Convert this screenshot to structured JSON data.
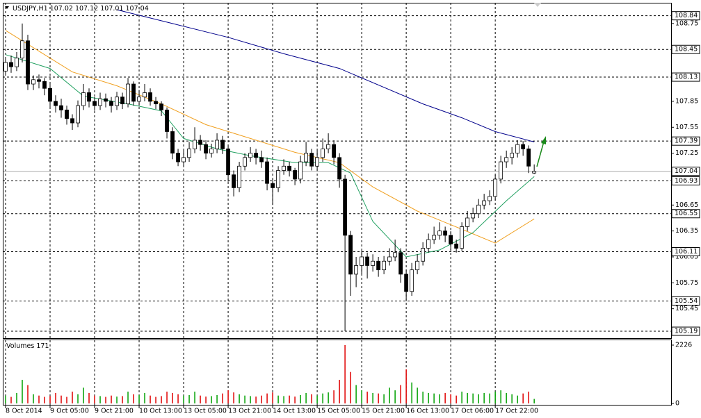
{
  "chart_data": {
    "type": "candlestick",
    "symbol": "USDJPY,H1",
    "volume_label": "Volumes",
    "up_color": "#ffffff",
    "down_color": "#000000",
    "wick_color": "#000000",
    "volume_up_color": "#00a000",
    "volume_down_color": "#e00000",
    "grid": true,
    "xlim": [
      -0.5,
      119.6
    ],
    "xticks": [
      {
        "value": 0,
        "label": "8 Oct 2014"
      },
      {
        "value": 8,
        "label": "9 Oct 05:00"
      },
      {
        "value": 16,
        "label": "9 Oct 21:00"
      },
      {
        "value": 24,
        "label": "10 Oct 13:00"
      },
      {
        "value": 32,
        "label": "13 Oct 05:00"
      },
      {
        "value": 40,
        "label": "13 Oct 21:00"
      },
      {
        "value": 48,
        "label": "14 Oct 13:00"
      },
      {
        "value": 56,
        "label": "15 Oct 05:00"
      },
      {
        "value": 64,
        "label": "15 Oct 21:00"
      },
      {
        "value": 72,
        "label": "16 Oct 13:00"
      },
      {
        "value": 80,
        "label": "17 Oct 06:00"
      },
      {
        "value": 88,
        "label": "17 Oct 22:00"
      }
    ],
    "ylim": [
      105.11,
      108.99
    ],
    "yticks": [
      105.45,
      105.75,
      106.05,
      106.35,
      106.65,
      107.25,
      107.55,
      107.85,
      108.75
    ],
    "levels": [
      108.84,
      108.45,
      108.13,
      107.39,
      107.04,
      106.93,
      106.55,
      106.11,
      105.54,
      105.19
    ],
    "vlim": [
      0,
      2226
    ],
    "vticks": [
      0,
      2226
    ],
    "x": [
      0,
      1,
      2,
      3,
      4,
      5,
      6,
      7,
      8,
      9,
      10,
      11,
      12,
      13,
      14,
      15,
      16,
      17,
      18,
      19,
      20,
      21,
      22,
      23,
      24,
      25,
      26,
      27,
      28,
      29,
      30,
      31,
      32,
      33,
      34,
      35,
      36,
      37,
      38,
      39,
      40,
      41,
      42,
      43,
      44,
      45,
      46,
      47,
      48,
      49,
      50,
      51,
      52,
      53,
      54,
      55,
      56,
      57,
      58,
      59,
      60,
      61,
      62,
      63,
      64,
      65,
      66,
      67,
      68,
      69,
      70,
      71,
      72,
      73,
      74,
      75,
      76,
      77,
      78,
      79,
      80,
      81,
      82,
      83,
      84,
      85,
      86,
      87,
      88,
      89,
      90,
      91,
      92,
      93,
      94,
      95
    ],
    "open": [
      108.2,
      108.3,
      108.25,
      108.35,
      108.55,
      108.05,
      108.1,
      108.08,
      108.0,
      107.85,
      107.8,
      107.75,
      107.65,
      107.6,
      107.8,
      107.95,
      107.85,
      107.8,
      107.88,
      107.85,
      107.8,
      107.9,
      107.82,
      108.05,
      107.85,
      107.9,
      107.95,
      107.85,
      107.82,
      107.75,
      107.5,
      107.25,
      107.15,
      107.2,
      107.3,
      107.4,
      107.35,
      107.25,
      107.3,
      107.4,
      107.3,
      107.0,
      106.85,
      107.1,
      107.2,
      107.25,
      107.2,
      107.15,
      106.9,
      106.85,
      107.05,
      107.1,
      107.05,
      106.95,
      107.15,
      107.25,
      107.1,
      107.2,
      107.3,
      107.35,
      107.2,
      106.95,
      106.3,
      105.85,
      105.95,
      106.05,
      105.95,
      106.0,
      105.9,
      106.0,
      106.05,
      106.1,
      105.85,
      105.65,
      105.9,
      106.0,
      106.15,
      106.25,
      106.3,
      106.35,
      106.3,
      106.2,
      106.15,
      106.4,
      106.5,
      106.55,
      106.65,
      106.7,
      106.75,
      106.95,
      107.15,
      107.2,
      107.25,
      107.35,
      107.3,
      107.02
    ],
    "high": [
      108.35,
      108.38,
      108.42,
      108.75,
      108.62,
      108.15,
      108.16,
      108.12,
      108.05,
      107.92,
      107.88,
      107.8,
      107.7,
      107.86,
      108.05,
      108.0,
      107.9,
      107.95,
      107.94,
      107.9,
      107.96,
      107.95,
      108.12,
      108.08,
      107.98,
      108.05,
      108.0,
      107.9,
      107.85,
      107.78,
      107.55,
      107.3,
      107.28,
      107.38,
      107.55,
      107.46,
      107.4,
      107.36,
      107.48,
      107.45,
      107.34,
      107.05,
      107.15,
      107.25,
      107.32,
      107.3,
      107.28,
      107.2,
      106.95,
      107.1,
      107.18,
      107.15,
      107.08,
      107.22,
      107.38,
      107.3,
      107.28,
      107.42,
      107.48,
      107.4,
      107.25,
      107.0,
      106.35,
      106.05,
      106.12,
      106.1,
      106.08,
      106.05,
      106.06,
      106.15,
      106.25,
      106.15,
      105.9,
      105.98,
      106.08,
      106.22,
      106.32,
      106.4,
      106.45,
      106.4,
      106.35,
      106.25,
      106.45,
      106.58,
      106.62,
      106.72,
      106.78,
      106.82,
      107.0,
      107.22,
      107.28,
      107.32,
      107.4,
      107.39,
      107.34,
      107.12
    ],
    "low": [
      108.15,
      108.18,
      108.2,
      108.3,
      107.98,
      107.98,
      108.0,
      107.92,
      107.78,
      107.72,
      107.66,
      107.58,
      107.52,
      107.55,
      107.75,
      107.78,
      107.74,
      107.75,
      107.78,
      107.72,
      107.75,
      107.76,
      107.78,
      107.8,
      107.8,
      107.85,
      107.8,
      107.76,
      107.68,
      107.42,
      107.18,
      107.1,
      107.1,
      107.15,
      107.25,
      107.28,
      107.18,
      107.2,
      107.25,
      107.24,
      106.92,
      106.75,
      106.8,
      107.05,
      107.15,
      107.12,
      107.08,
      106.82,
      106.65,
      106.8,
      107.0,
      106.98,
      106.88,
      106.9,
      107.1,
      107.05,
      107.05,
      107.15,
      107.25,
      107.12,
      106.85,
      105.19,
      105.6,
      105.7,
      105.85,
      105.8,
      105.88,
      105.82,
      105.85,
      105.95,
      106.0,
      105.75,
      105.54,
      105.6,
      105.85,
      105.95,
      106.1,
      106.2,
      106.25,
      106.22,
      106.12,
      106.1,
      106.12,
      106.35,
      106.45,
      106.5,
      106.6,
      106.65,
      106.7,
      106.9,
      107.08,
      107.12,
      107.2,
      107.22,
      107.02,
      107.01
    ],
    "close": [
      108.3,
      108.25,
      108.35,
      108.55,
      108.05,
      108.1,
      108.08,
      108.0,
      107.85,
      107.8,
      107.75,
      107.65,
      107.6,
      107.8,
      107.95,
      107.85,
      107.8,
      107.88,
      107.85,
      107.8,
      107.9,
      107.82,
      108.05,
      107.85,
      107.9,
      107.95,
      107.85,
      107.82,
      107.75,
      107.5,
      107.25,
      107.15,
      107.2,
      107.3,
      107.4,
      107.35,
      107.25,
      107.3,
      107.4,
      107.3,
      107.0,
      106.85,
      107.1,
      107.2,
      107.25,
      107.2,
      107.15,
      106.9,
      106.85,
      107.05,
      107.1,
      107.05,
      106.95,
      107.15,
      107.25,
      107.1,
      107.2,
      107.3,
      107.35,
      107.2,
      106.95,
      106.3,
      105.85,
      105.95,
      106.05,
      105.95,
      106.0,
      105.9,
      106.0,
      106.05,
      106.1,
      105.85,
      105.65,
      105.9,
      106.0,
      106.15,
      106.25,
      106.3,
      106.35,
      106.3,
      106.2,
      106.15,
      106.4,
      106.5,
      106.55,
      106.65,
      106.7,
      106.75,
      106.95,
      107.15,
      107.2,
      107.25,
      107.35,
      107.3,
      107.1,
      107.04
    ],
    "volume": [
      300,
      250,
      400,
      900,
      700,
      350,
      300,
      250,
      280,
      400,
      300,
      250,
      450,
      350,
      600,
      400,
      300,
      280,
      250,
      300,
      260,
      280,
      450,
      350,
      320,
      400,
      300,
      250,
      280,
      450,
      400,
      350,
      300,
      320,
      450,
      300,
      260,
      280,
      320,
      380,
      500,
      420,
      350,
      300,
      280,
      260,
      300,
      380,
      420,
      300,
      280,
      300,
      260,
      320,
      400,
      350,
      300,
      380,
      420,
      500,
      900,
      2226,
      1200,
      700,
      500,
      450,
      400,
      380,
      350,
      600,
      500,
      700,
      1300,
      800,
      600,
      450,
      400,
      380,
      350,
      400,
      350,
      300,
      450,
      400,
      380,
      350,
      400,
      380,
      450,
      500,
      400,
      350,
      300,
      380,
      450,
      171
    ],
    "moving_averages": [
      {
        "color": "#00008b",
        "x": [
          20,
          30,
          40,
          50,
          60,
          75,
          82,
          88,
          95
        ],
        "values": [
          108.91,
          108.75,
          108.59,
          108.4,
          108.23,
          107.82,
          107.66,
          107.5,
          107.38
        ]
      },
      {
        "color": "#f0a020",
        "x": [
          0,
          5,
          12,
          20,
          28,
          36,
          44,
          52,
          60,
          66,
          74,
          82,
          88,
          95
        ],
        "values": [
          108.67,
          108.47,
          108.19,
          108.03,
          107.82,
          107.58,
          107.42,
          107.26,
          107.14,
          106.86,
          106.58,
          106.37,
          106.21,
          106.49
        ]
      },
      {
        "color": "#20a060",
        "x": [
          0,
          8,
          14,
          22,
          28,
          32,
          38,
          44,
          52,
          58,
          62,
          66,
          72,
          78,
          84,
          90,
          95
        ],
        "values": [
          108.39,
          108.23,
          107.91,
          107.82,
          107.74,
          107.42,
          107.3,
          107.22,
          107.14,
          107.14,
          107.02,
          106.46,
          106.05,
          106.13,
          106.33,
          106.7,
          106.98
        ]
      }
    ]
  }
}
